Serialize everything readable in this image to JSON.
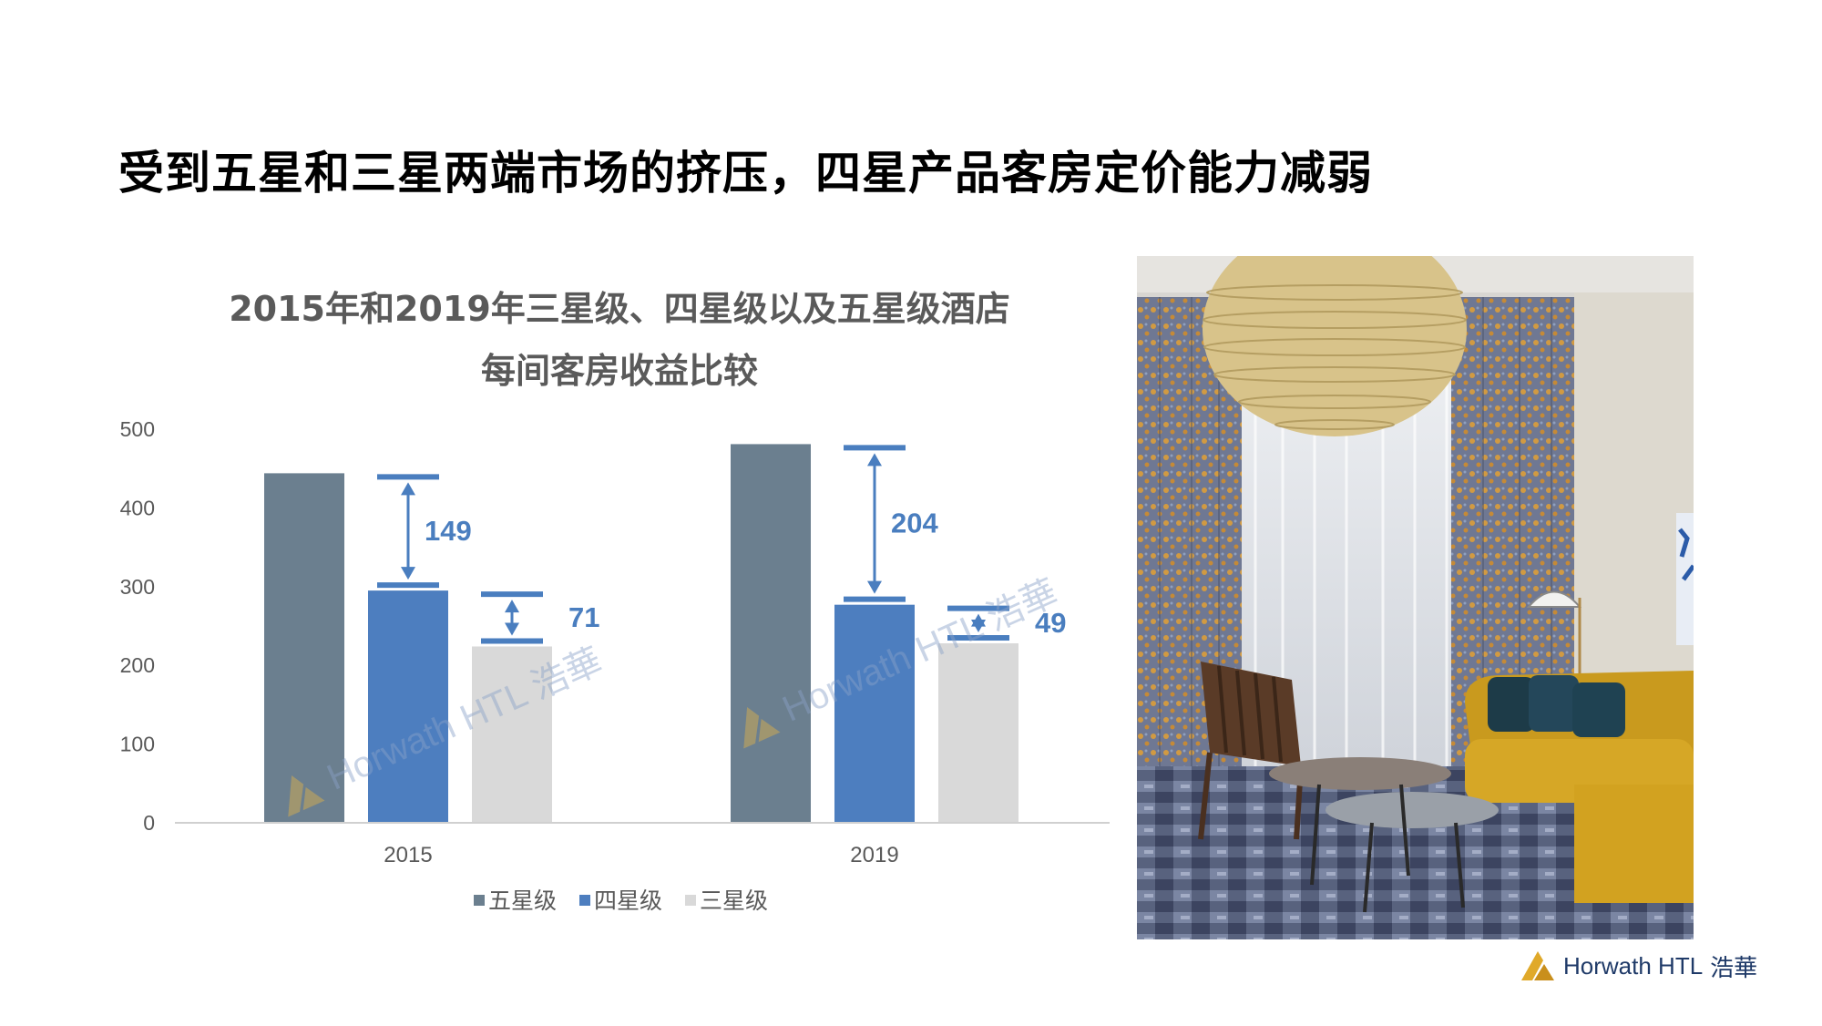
{
  "slide": {
    "title": "受到五星和三星两端市场的挤压，四星产品客房定价能力减弱"
  },
  "chart_data": {
    "type": "bar",
    "title_lines": [
      "2015年和2019年三星级、四星级以及五星级酒店",
      "每间客房收益比较"
    ],
    "categories": [
      "2015",
      "2019"
    ],
    "series": [
      {
        "name": "五星级",
        "values": [
          444,
          481
        ],
        "color": "#6b7f8f"
      },
      {
        "name": "四星级",
        "values": [
          295,
          277
        ],
        "color": "#4d7ebf"
      },
      {
        "name": "三星级",
        "values": [
          224,
          228
        ],
        "color": "#d9d9d9"
      }
    ],
    "annotations": [
      {
        "category": "2015",
        "between": [
          "五星级",
          "四星级"
        ],
        "label": "149"
      },
      {
        "category": "2015",
        "between": [
          "四星级",
          "三星级"
        ],
        "label": "71"
      },
      {
        "category": "2019",
        "between": [
          "五星级",
          "四星级"
        ],
        "label": "204"
      },
      {
        "category": "2019",
        "between": [
          "四星级",
          "三星级"
        ],
        "label": "49"
      }
    ],
    "ylim": [
      0,
      500
    ],
    "yticks": [
      "0",
      "100",
      "200",
      "300",
      "400",
      "500"
    ],
    "grid": false,
    "legend": "bottom",
    "watermark": "Horwath HTL 浩華",
    "annotation_color": "#4a7ebf"
  },
  "footer": {
    "logo_text": "Horwath HTL",
    "logo_cjk": "浩華"
  },
  "photo": {
    "icon": "hotel-room-photo"
  }
}
